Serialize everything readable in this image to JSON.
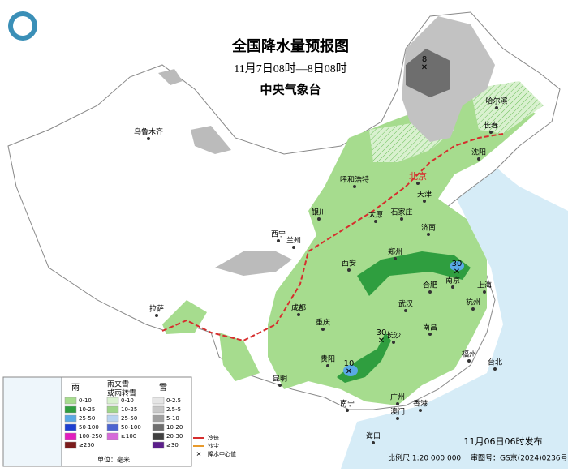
{
  "header": {
    "title": "全国降水量预报图",
    "subtitle": "11月7日08时—8日08时",
    "issuer": "中央气象台"
  },
  "cities": [
    "乌鲁木齐",
    "哈尔滨",
    "长春",
    "沈阳",
    "北京",
    "呼和浩特",
    "天津",
    "银川",
    "太原",
    "石家庄",
    "西宁",
    "兰州",
    "济南",
    "西安",
    "郑州",
    "南京",
    "合肥",
    "上海",
    "拉萨",
    "成都",
    "武汉",
    "杭州",
    "重庆",
    "南昌",
    "长沙",
    "福州",
    "贵阳",
    "台北",
    "昆明",
    "南宁",
    "广州",
    "香港",
    "澳门",
    "海口"
  ],
  "centers": [
    "8",
    "30",
    "30",
    "10"
  ],
  "legend": {
    "rain": {
      "title": "雨",
      "items": [
        "0-10",
        "10-25",
        "25-50",
        "50-100",
        "100-250",
        "≥250"
      ]
    },
    "sleet": {
      "title": [
        "雨夹雪",
        "或雨转雪"
      ],
      "items": [
        "0-10",
        "10-25",
        "25-50",
        "50-100",
        "≥100"
      ]
    },
    "snow": {
      "title": "雪",
      "items": [
        "0-2.5",
        "2.5-5",
        "5-10",
        "10-20",
        "20-30",
        "≥30"
      ]
    },
    "unit": "单位：毫米",
    "symbols": [
      "冷锋",
      "沙尘",
      "降水中心值"
    ]
  },
  "footer": {
    "scale": "比例尺 1:20 000 000",
    "approval": "审图号：GS京(2024)0236号",
    "issued": "11月06日06时发布"
  }
}
